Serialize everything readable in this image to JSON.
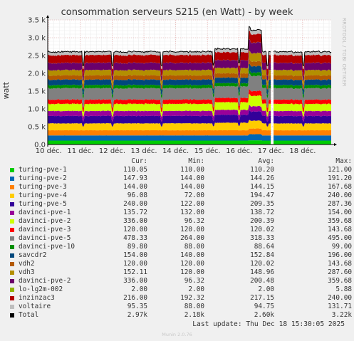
{
  "chart_data": {
    "type": "area",
    "title": "consommation serveurs S215 (en Watt) - by week",
    "ylabel": "watt",
    "side_label": "RRDTOOL / TOBI OETIKER",
    "ylim": [
      0,
      3500
    ],
    "yticks": [
      "0.0",
      "0.5 k",
      "1.0 k",
      "1.5 k",
      "2.0 k",
      "2.5 k",
      "3.0 k",
      "3.5 k"
    ],
    "ytick_values": [
      0,
      500,
      1000,
      1500,
      2000,
      2500,
      3000,
      3500
    ],
    "xticks": [
      "10 déc.",
      "11 déc.",
      "12 déc.",
      "13 déc.",
      "14 déc.",
      "15 déc.",
      "16 déc.",
      "17 déc.",
      "18 déc."
    ],
    "xlim_days": [
      9.97,
      18.9
    ],
    "gap_days": [
      17.0,
      17.08
    ],
    "grid": true,
    "stacked": true,
    "columns": [
      "Cur:",
      "Min:",
      "Avg:",
      "Max:"
    ],
    "series": [
      {
        "name": "turing-pve-1",
        "color": "#00cc00",
        "cur": "110.05",
        "min": "110.00",
        "avg": "110.20",
        "max": "121.00"
      },
      {
        "name": "turing-pve-2",
        "color": "#0066b3",
        "cur": "147.93",
        "min": "144.00",
        "avg": "144.26",
        "max": "191.20"
      },
      {
        "name": "turing-pve-3",
        "color": "#ff8000",
        "cur": "144.00",
        "min": "144.00",
        "avg": "144.15",
        "max": "167.68"
      },
      {
        "name": "turing-pve-4",
        "color": "#ffcc00",
        "cur": "96.08",
        "min": "72.00",
        "avg": "194.47",
        "max": "240.00"
      },
      {
        "name": "turing-pve-5",
        "color": "#330099",
        "cur": "240.00",
        "min": "122.00",
        "avg": "209.35",
        "max": "287.36"
      },
      {
        "name": "davinci-pve-1",
        "color": "#990099",
        "cur": "135.72",
        "min": "132.00",
        "avg": "138.72",
        "max": "154.00"
      },
      {
        "name": "davinci-pve-2",
        "color": "#ccff00",
        "cur": "336.00",
        "min": "96.32",
        "avg": "200.39",
        "max": "359.68"
      },
      {
        "name": "davinci-pve-3",
        "color": "#ff0000",
        "cur": "120.00",
        "min": "120.00",
        "avg": "120.02",
        "max": "143.68"
      },
      {
        "name": "davinci-pve-5",
        "color": "#808080",
        "cur": "478.33",
        "min": "264.00",
        "avg": "318.33",
        "max": "495.00"
      },
      {
        "name": "davinci-pve-10",
        "color": "#008f00",
        "cur": "89.80",
        "min": "88.00",
        "avg": "88.64",
        "max": "99.00"
      },
      {
        "name": "savcdr2",
        "color": "#00487d",
        "cur": "154.00",
        "min": "140.00",
        "avg": "152.84",
        "max": "196.00"
      },
      {
        "name": "vdh2",
        "color": "#b35a00",
        "cur": "120.00",
        "min": "120.00",
        "avg": "120.02",
        "max": "143.68"
      },
      {
        "name": "vdh3",
        "color": "#b38f00",
        "cur": "152.11",
        "min": "120.00",
        "avg": "148.96",
        "max": "287.60"
      },
      {
        "name": "davinci-pve-2",
        "color": "#6b006b",
        "cur": "336.00",
        "min": "96.32",
        "avg": "200.48",
        "max": "359.68"
      },
      {
        "name": "lo-lg2m-002",
        "color": "#8fb300",
        "cur": "2.00",
        "min": "2.00",
        "avg": "2.00",
        "max": "5.88"
      },
      {
        "name": "inzinzac3",
        "color": "#b30000",
        "cur": "216.00",
        "min": "192.32",
        "avg": "217.15",
        "max": "240.00"
      },
      {
        "name": "voltaire",
        "color": "#bebebe",
        "cur": "95.35",
        "min": "88.00",
        "avg": "94.75",
        "max": "131.71"
      },
      {
        "name": "Total",
        "color": "#000000",
        "cur": "2.97k",
        "min": "2.18k",
        "avg": "2.60k",
        "max": "3.22k"
      }
    ]
  },
  "last_update": "Last update: Thu Dec 18 15:30:05 2025",
  "footer": "Munin 2.0.76"
}
